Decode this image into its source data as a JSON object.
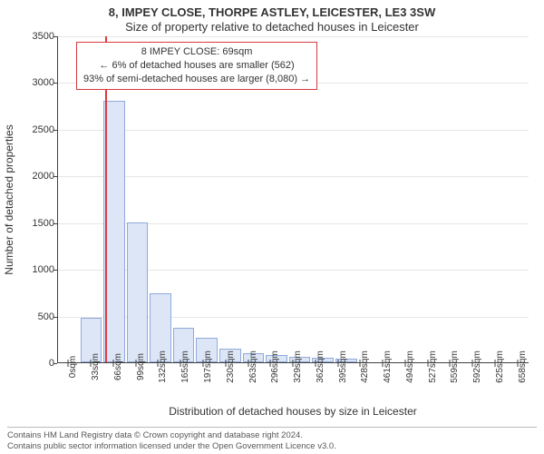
{
  "title_line1": "8, IMPEY CLOSE, THORPE ASTLEY, LEICESTER, LE3 3SW",
  "title_line2": "Size of property relative to detached houses in Leicester",
  "yaxis_label": "Number of detached properties",
  "xaxis_label": "Distribution of detached houses by size in Leicester",
  "chart": {
    "type": "histogram",
    "background_color": "#ffffff",
    "grid_color": "#e6e6e6",
    "axis_color": "#414141",
    "bar_fill": "#dde6f6",
    "bar_stroke": "#8faadc",
    "marker_color": "#d93a3f",
    "marker_x_value": 69,
    "label_fontsize": 12,
    "tick_fontsize": 10,
    "title_fontsize": 13,
    "ylim": [
      0,
      3500
    ],
    "yticks": [
      0,
      500,
      1000,
      1500,
      2000,
      2500,
      3000,
      3500
    ],
    "bin_width_sqm": 33,
    "xtick_labels": [
      "0sqm",
      "33sqm",
      "66sqm",
      "99sqm",
      "132sqm",
      "165sqm",
      "197sqm",
      "230sqm",
      "263sqm",
      "296sqm",
      "329sqm",
      "362sqm",
      "395sqm",
      "428sqm",
      "461sqm",
      "494sqm",
      "527sqm",
      "559sqm",
      "592sqm",
      "625sqm",
      "658sqm"
    ],
    "values": [
      0,
      480,
      2800,
      1500,
      740,
      370,
      260,
      150,
      100,
      80,
      60,
      45,
      35,
      0,
      0,
      0,
      0,
      0,
      0,
      0,
      0
    ],
    "bars_count": 21
  },
  "annotation": {
    "line1": "8 IMPEY CLOSE: 69sqm",
    "line2": "← 6% of detached houses are smaller (562)",
    "line3": "93% of semi-detached houses are larger (8,080) →",
    "border_color": "#d93a3f",
    "fontsize": 11
  },
  "footer": {
    "line1": "Contains HM Land Registry data © Crown copyright and database right 2024.",
    "line2": "Contains public sector information licensed under the Open Government Licence v3.0.",
    "fontsize": 9.5,
    "color": "#575757"
  }
}
